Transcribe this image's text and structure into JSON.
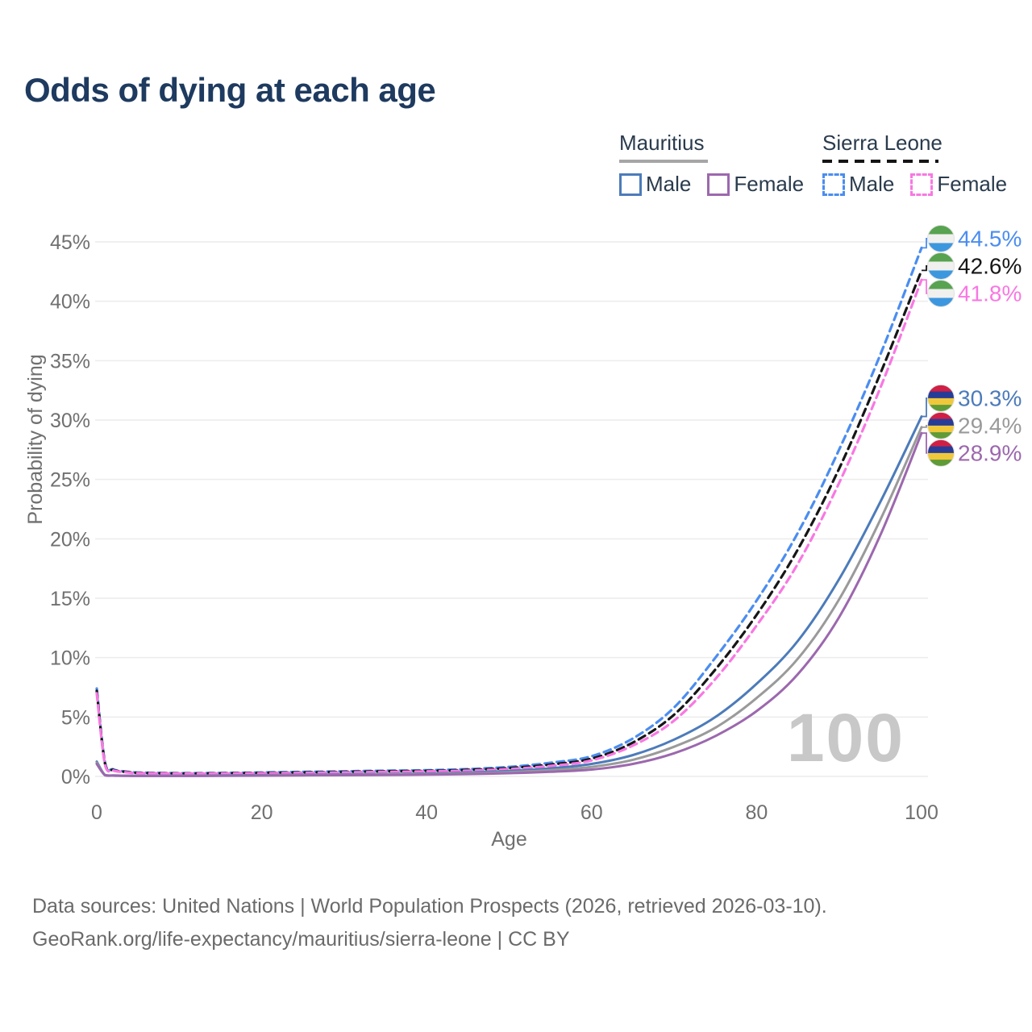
{
  "title": "Odds of dying at each age",
  "legend": {
    "groups": [
      {
        "name": "Mauritius",
        "style": "solid",
        "underline_color": "#a6a6a6",
        "items": [
          {
            "label": "Male",
            "color": "#4c7bba"
          },
          {
            "label": "Female",
            "color": "#9c68ae"
          }
        ]
      },
      {
        "name": "Sierra Leone",
        "style": "dashed",
        "underline_color": "#141414",
        "items": [
          {
            "label": "Male",
            "color": "#4b8df0"
          },
          {
            "label": "Female",
            "color": "#f878e2"
          }
        ]
      }
    ]
  },
  "watermark": "100",
  "footer": {
    "line1": "Data sources: United Nations | World Population Prospects (2026, retrieved 2026-03-10).",
    "line2": "GeoRank.org/life-expectancy/mauritius/sierra-leone | CC BY"
  },
  "colors": {
    "title": "#1e3a5f",
    "axis_text": "#707070",
    "gridline": "#ececec",
    "watermark": "#c8c8c8",
    "footer_text": "#6a6a6a",
    "legend_text": "#2a3b4d"
  },
  "chart_data": {
    "type": "line",
    "title": "Odds of dying at each age",
    "xlabel": "Age",
    "ylabel": "Probability of dying",
    "xlim": [
      0,
      100
    ],
    "ylim": [
      0,
      45
    ],
    "grid": true,
    "x_ticks": [
      0,
      20,
      40,
      60,
      80,
      100
    ],
    "y_ticks": [
      0,
      5,
      10,
      15,
      20,
      25,
      30,
      35,
      40,
      45
    ],
    "y_tick_labels": [
      "0%",
      "5%",
      "10%",
      "15%",
      "20%",
      "25%",
      "30%",
      "35%",
      "40%",
      "45%"
    ],
    "ages": [
      0,
      1,
      2,
      3,
      4,
      5,
      10,
      15,
      20,
      25,
      30,
      35,
      40,
      45,
      50,
      55,
      60,
      65,
      70,
      75,
      80,
      85,
      90,
      95,
      100
    ],
    "series": [
      {
        "name": "Sierra Leone Male",
        "country": "Sierra Leone",
        "sex": "Male",
        "style": "dashed",
        "color": "#4b8df0",
        "flag": "sierra-leone",
        "end_label": "44.5%",
        "values": [
          7.4,
          1.2,
          0.6,
          0.45,
          0.38,
          0.33,
          0.27,
          0.29,
          0.33,
          0.38,
          0.43,
          0.48,
          0.52,
          0.62,
          0.8,
          1.15,
          1.7,
          3.2,
          5.8,
          10.0,
          14.8,
          20.5,
          27.5,
          35.5,
          44.5
        ]
      },
      {
        "name": "Sierra Leone Both sexes",
        "country": "Sierra Leone",
        "sex": "Both",
        "style": "dashed",
        "color": "#161616",
        "flag": "sierra-leone",
        "end_label": "42.6%",
        "values": [
          7.2,
          1.1,
          0.55,
          0.42,
          0.35,
          0.3,
          0.25,
          0.26,
          0.3,
          0.34,
          0.38,
          0.43,
          0.47,
          0.55,
          0.7,
          1.0,
          1.5,
          2.85,
          5.2,
          9.0,
          13.6,
          19.1,
          25.9,
          33.9,
          42.6
        ]
      },
      {
        "name": "Sierra Leone Female",
        "country": "Sierra Leone",
        "sex": "Female",
        "style": "dashed",
        "color": "#f878e2",
        "flag": "sierra-leone",
        "end_label": "41.8%",
        "values": [
          7.0,
          1.0,
          0.5,
          0.39,
          0.32,
          0.28,
          0.23,
          0.24,
          0.27,
          0.3,
          0.34,
          0.38,
          0.42,
          0.49,
          0.62,
          0.88,
          1.35,
          2.6,
          4.7,
          8.2,
          12.7,
          17.9,
          24.7,
          32.7,
          41.8
        ]
      },
      {
        "name": "Mauritius Male",
        "country": "Mauritius",
        "sex": "Male",
        "style": "solid",
        "color": "#4c7bba",
        "flag": "mauritius",
        "end_label": "30.3%",
        "values": [
          1.25,
          0.12,
          0.08,
          0.07,
          0.06,
          0.05,
          0.05,
          0.08,
          0.11,
          0.14,
          0.17,
          0.2,
          0.24,
          0.33,
          0.46,
          0.68,
          1.05,
          1.8,
          3.1,
          5.0,
          7.8,
          11.4,
          16.6,
          23.1,
          30.3
        ]
      },
      {
        "name": "Mauritius Both sexes",
        "country": "Mauritius",
        "sex": "Both",
        "style": "solid",
        "color": "#9a9a9a",
        "flag": "mauritius",
        "end_label": "29.4%",
        "values": [
          1.15,
          0.11,
          0.07,
          0.06,
          0.05,
          0.045,
          0.045,
          0.065,
          0.09,
          0.11,
          0.13,
          0.16,
          0.19,
          0.26,
          0.36,
          0.53,
          0.8,
          1.4,
          2.5,
          4.1,
          6.6,
          9.9,
          14.9,
          21.6,
          29.4
        ]
      },
      {
        "name": "Mauritius Female",
        "country": "Mauritius",
        "sex": "Female",
        "style": "solid",
        "color": "#9c68ae",
        "flag": "mauritius",
        "end_label": "28.9%",
        "values": [
          1.05,
          0.1,
          0.065,
          0.055,
          0.045,
          0.04,
          0.04,
          0.05,
          0.07,
          0.085,
          0.1,
          0.12,
          0.15,
          0.2,
          0.27,
          0.39,
          0.58,
          1.05,
          1.95,
          3.4,
          5.5,
          8.6,
          13.4,
          20.3,
          28.9
        ]
      }
    ],
    "flag_palettes": {
      "sierra-leone": [
        "#57a350",
        "#f0f0ee",
        "#3d97de"
      ],
      "mauritius": [
        "#d01f45",
        "#273c97",
        "#f0c83c",
        "#5f9b37"
      ]
    },
    "legend_position": "top-right"
  }
}
